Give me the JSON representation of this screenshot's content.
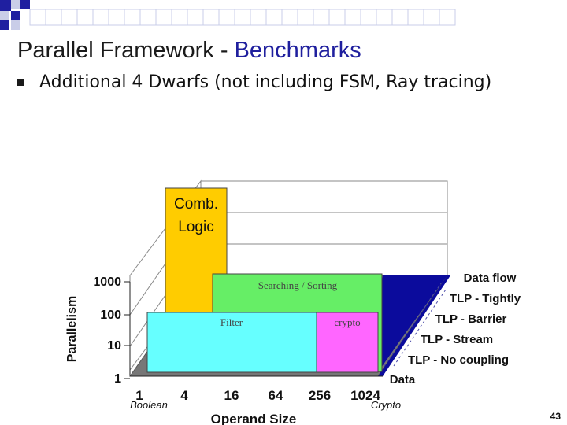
{
  "slide": {
    "title_main": "Parallel Framework - ",
    "title_accent": "Benchmarks",
    "bullet": "Additional 4 Dwarfs (not including FSM, Ray tracing)",
    "number": "43"
  },
  "colors": {
    "title_accent": "#1f1f9e",
    "deco_blue": "#1f1fa0",
    "deco_light": "#c9cde8",
    "comb_logic": "#ffcc00",
    "searching_sorting": "#66ee66",
    "filter": "#66ffff",
    "crypto": "#ff66ff",
    "data_floor": "#0b0b9c",
    "floor": "#888888"
  },
  "chart": {
    "y_axis_label": "Parallelism",
    "x_axis_label": "Operand Size",
    "y_ticks": [
      "1000",
      "100",
      "10",
      "1"
    ],
    "x_ticks": [
      "1",
      "4",
      "16",
      "64",
      "256",
      "1024"
    ],
    "x_annotations": {
      "start": "Boolean",
      "end": "Crypto"
    },
    "depth_labels": [
      "Data flow",
      "TLP - Tightly",
      "TLP - Barrier",
      "TLP - Stream",
      "TLP - No coupling",
      "Data"
    ],
    "blocks": {
      "comb_logic_line1": "Comb.",
      "comb_logic_line2": "Logic",
      "searching_sorting": "Searching / Sorting",
      "filter": "Filter",
      "crypto": "crypto"
    }
  }
}
